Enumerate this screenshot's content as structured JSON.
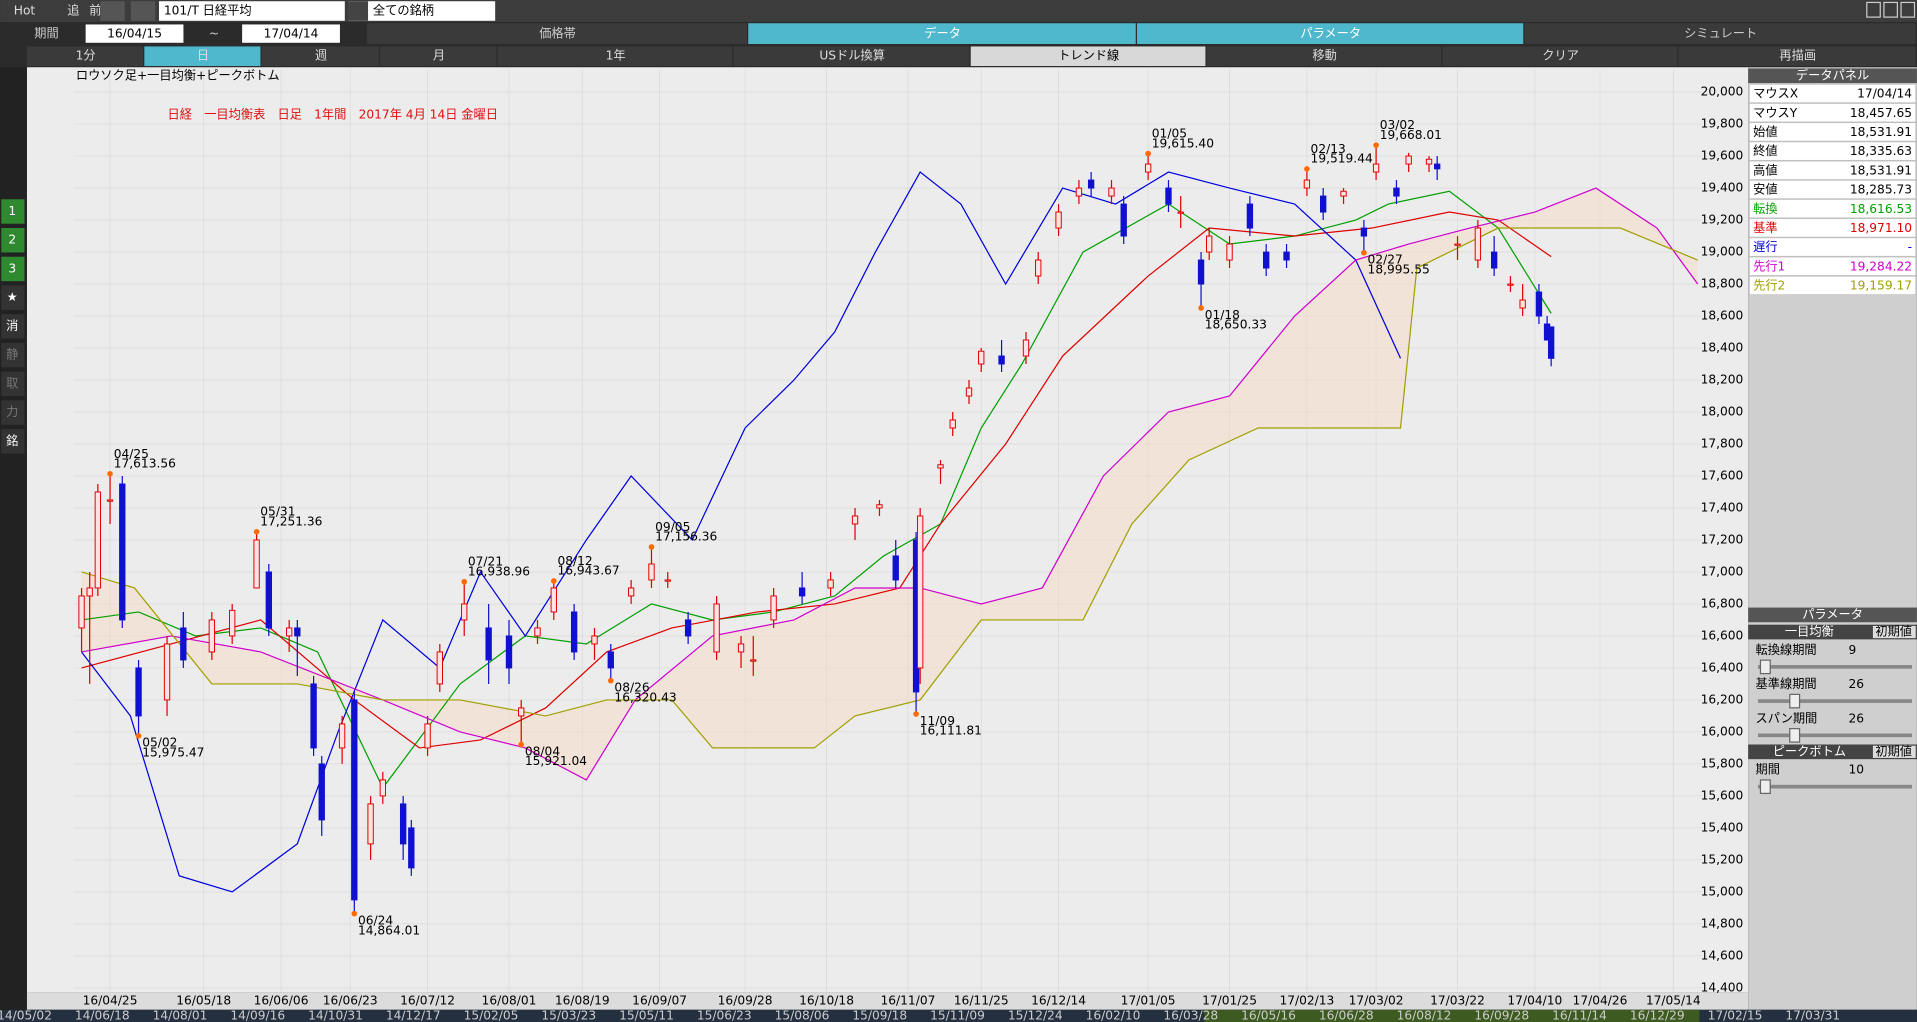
{
  "toolbar": {
    "items": [
      "Hot",
      "追",
      "前"
    ],
    "symbol": "101/T 日経平均",
    "filter": "全ての銘柄"
  },
  "period": {
    "label": "期間",
    "from": "16/04/15",
    "sep": "~",
    "to": "17/04/14"
  },
  "tabs": [
    "価格帯",
    "データ",
    "パラメータ",
    "シミュレート"
  ],
  "timeframes": [
    "1分",
    "日",
    "週",
    "月",
    "1年",
    "USドル換算",
    "トレンド線",
    "移動",
    "クリア",
    "再描画"
  ],
  "sidebar": [
    "1",
    "2",
    "3",
    "★",
    "消",
    "静",
    "取",
    "力",
    "銘"
  ],
  "chart_data": {
    "type": "candlestick",
    "title": "日経　一目均衡表　日足　1年間　2017年 4月 14日 金曜日",
    "subtitle": "ロウソク足+一目均衡+ピークボトム",
    "xlim": [
      "16/04/16",
      "17/05/21"
    ],
    "xticks": [
      "16/04/25",
      "16/05/18",
      "16/06/06",
      "16/06/23",
      "16/07/12",
      "16/08/01",
      "16/08/19",
      "16/09/07",
      "16/09/28",
      "16/10/18",
      "16/11/07",
      "16/11/25",
      "16/12/14",
      "17/01/05",
      "17/01/25",
      "17/02/13",
      "17/03/02",
      "17/03/22",
      "17/04/10",
      "17/04/26",
      "17/05/14"
    ],
    "ylim": [
      14370,
      20140
    ],
    "yticks": [
      {
        "value": 14400,
        "label": "14,400"
      },
      {
        "value": 14600,
        "label": "14,600"
      },
      {
        "value": 14800,
        "label": "14,800"
      },
      {
        "value": 15000,
        "label": "15,000"
      },
      {
        "value": 15200,
        "label": "15,200"
      },
      {
        "value": 15400,
        "label": "15,400"
      },
      {
        "value": 15600,
        "label": "15,600"
      },
      {
        "value": 15800,
        "label": "15,800"
      },
      {
        "value": 16000,
        "label": "16,000"
      },
      {
        "value": 16200,
        "label": "16,200"
      },
      {
        "value": 16400,
        "label": "16,400"
      },
      {
        "value": 16600,
        "label": "16,600"
      },
      {
        "value": 16800,
        "label": "16,800"
      },
      {
        "value": 17000,
        "label": "17,000"
      },
      {
        "value": 17200,
        "label": "17,200"
      },
      {
        "value": 17400,
        "label": "17,400"
      },
      {
        "value": 17600,
        "label": "17,600"
      },
      {
        "value": 17800,
        "label": "17,800"
      },
      {
        "value": 18000,
        "label": "18,000"
      },
      {
        "value": 18200,
        "label": "18,200"
      },
      {
        "value": 18400,
        "label": "18,400"
      },
      {
        "value": 18600,
        "label": "18,600"
      },
      {
        "value": 18800,
        "label": "18,800"
      },
      {
        "value": 19000,
        "label": "19,000"
      },
      {
        "value": 19200,
        "label": "19,200"
      },
      {
        "value": 19400,
        "label": "19,400"
      },
      {
        "value": 19600,
        "label": "19,600"
      },
      {
        "value": 19800,
        "label": "19,800"
      },
      {
        "value": 20000,
        "label": "20,000"
      }
    ],
    "grid": true,
    "up_color": "#e00000",
    "down_color": "#1010d0",
    "candles": {
      "x": [
        "16/04/18",
        "16/04/20",
        "16/04/22",
        "16/04/25",
        "16/04/28",
        "16/05/02",
        "16/05/09",
        "16/05/13",
        "16/05/20",
        "16/05/25",
        "16/05/31",
        "16/06/03",
        "16/06/08",
        "16/06/10",
        "16/06/14",
        "16/06/16",
        "16/06/21",
        "16/06/24",
        "16/06/28",
        "16/07/01",
        "16/07/06",
        "16/07/08",
        "16/07/12",
        "16/07/15",
        "16/07/21",
        "16/07/27",
        "16/08/01",
        "16/08/04",
        "16/08/08",
        "16/08/12",
        "16/08/17",
        "16/08/22",
        "16/08/26",
        "16/08/31",
        "16/09/05",
        "16/09/09",
        "16/09/14",
        "16/09/21",
        "16/09/27",
        "16/09/30",
        "16/10/05",
        "16/10/12",
        "16/10/19",
        "16/10/25",
        "16/10/31",
        "16/11/04",
        "16/11/09",
        "16/11/10",
        "16/11/15",
        "16/11/18",
        "16/11/22",
        "16/11/25",
        "16/11/30",
        "16/12/06",
        "16/12/09",
        "16/12/14",
        "16/12/19",
        "16/12/22",
        "16/12/27",
        "16/12/30",
        "17/01/05",
        "17/01/10",
        "17/01/13",
        "17/01/18",
        "17/01/20",
        "17/01/25",
        "17/01/30",
        "17/02/03",
        "17/02/08",
        "17/02/13",
        "17/02/17",
        "17/02/22",
        "17/02/27",
        "17/03/02",
        "17/03/07",
        "17/03/10",
        "17/03/15",
        "17/03/17",
        "17/03/22",
        "17/03/27",
        "17/03/31",
        "17/04/04",
        "17/04/07",
        "17/04/11",
        "17/04/13",
        "17/04/14"
      ],
      "open": [
        16650,
        16850,
        16900,
        17450,
        17550,
        16400,
        16200,
        16650,
        16500,
        16600,
        16900,
        17000,
        16600,
        16650,
        16300,
        15800,
        15900,
        16200,
        15300,
        15600,
        15550,
        15400,
        15900,
        16300,
        16700,
        16650,
        16600,
        16100,
        16600,
        16750,
        16750,
        16550,
        16500,
        16850,
        16950,
        16950,
        16700,
        16500,
        16500,
        16450,
        16700,
        16900,
        16900,
        17300,
        17400,
        17100,
        17200,
        16400,
        17650,
        17900,
        18100,
        18300,
        18350,
        18350,
        18850,
        19150,
        19350,
        19450,
        19350,
        19300,
        19500,
        19400,
        19250,
        18950,
        19000,
        18950,
        19300,
        19000,
        19000,
        19400,
        19350,
        19350,
        19150,
        19500,
        19400,
        19550,
        19550,
        19550,
        19050,
        18950,
        19000,
        18800,
        18650,
        18750,
        18550,
        18531.91
      ],
      "high": [
        16900,
        17000,
        17550,
        17613.56,
        17600,
        16450,
        16600,
        16750,
        16750,
        16800,
        17251.36,
        17050,
        16700,
        16700,
        16350,
        15850,
        16100,
        16250,
        15600,
        15750,
        15600,
        15450,
        16100,
        16550,
        16938.96,
        16800,
        16700,
        16200,
        16700,
        16943.67,
        16800,
        16650,
        16550,
        16950,
        17156.36,
        17000,
        16750,
        16850,
        16600,
        16600,
        16900,
        17000,
        17000,
        17400,
        17450,
        17200,
        17250,
        17400,
        17700,
        18000,
        18200,
        18400,
        18450,
        18500,
        19000,
        19300,
        19450,
        19500,
        19450,
        19350,
        19615.4,
        19450,
        19350,
        19000,
        19150,
        19100,
        19350,
        19050,
        19050,
        19519.44,
        19400,
        19400,
        19200,
        19668.01,
        19450,
        19620,
        19600,
        19600,
        19100,
        19200,
        19100,
        18850,
        18800,
        18800,
        18600,
        18531.91
      ],
      "low": [
        16500,
        16300,
        16850,
        17300,
        16650,
        15975.47,
        16100,
        16400,
        16450,
        16550,
        16900,
        16600,
        16500,
        16350,
        15850,
        15350,
        15800,
        14864.01,
        15200,
        15550,
        15200,
        15100,
        15850,
        16250,
        16600,
        16300,
        16300,
        15921.04,
        16550,
        16700,
        16450,
        16450,
        16320.43,
        16800,
        16900,
        16900,
        16550,
        16450,
        16400,
        16350,
        16650,
        16800,
        16850,
        17200,
        17350,
        16900,
        16111.81,
        16300,
        17550,
        17850,
        18050,
        18250,
        18250,
        18300,
        18800,
        19100,
        19300,
        19350,
        19300,
        19050,
        19450,
        19250,
        19150,
        18650.33,
        18950,
        18900,
        19100,
        18850,
        18900,
        19350,
        19200,
        19300,
        18995.55,
        19450,
        19300,
        19500,
        19500,
        19450,
        18950,
        18900,
        18850,
        18750,
        18600,
        18550,
        18450,
        18285.73
      ],
      "close": [
        16850,
        16900,
        17500,
        17450,
        16700,
        16100,
        16550,
        16450,
        16700,
        16760,
        17200,
        16650,
        16650,
        16600,
        15900,
        15450,
        16050,
        14950,
        15550,
        15700,
        15300,
        15150,
        16050,
        16500,
        16800,
        16450,
        16400,
        16150,
        16650,
        16900,
        16500,
        16600,
        16400,
        16900,
        17050,
        16950,
        16600,
        16800,
        16550,
        16450,
        16850,
        16850,
        16950,
        17350,
        17420,
        16950,
        16250,
        17350,
        17670,
        17950,
        18150,
        18380,
        18300,
        18450,
        18950,
        19250,
        19400,
        19400,
        19400,
        19100,
        19550,
        19300,
        19250,
        18800,
        19100,
        19050,
        19150,
        18900,
        18950,
        19450,
        19250,
        19380,
        19100,
        19550,
        19350,
        19600,
        19580,
        19520,
        19050,
        19150,
        18900,
        18800,
        18700,
        18600,
        18450,
        18335.63
      ]
    },
    "lines": [
      {
        "color": "#00a000",
        "x": [
          "16/04/18",
          "16/05/02",
          "16/05/16",
          "16/06/01",
          "16/06/15",
          "16/07/01",
          "16/07/20",
          "16/08/05",
          "16/08/20",
          "16/09/05",
          "16/09/20",
          "16/10/05",
          "16/10/20",
          "16/11/01",
          "16/11/15",
          "16/11/25",
          "16/12/05",
          "16/12/20",
          "17/01/10",
          "17/01/25",
          "17/02/10",
          "17/02/25",
          "17/03/05",
          "17/03/20",
          "17/04/01",
          "17/04/14"
        ],
        "values": [
          16700,
          16750,
          16600,
          16650,
          16500,
          15650,
          16300,
          16600,
          16550,
          16800,
          16700,
          16750,
          16850,
          17100,
          17300,
          17900,
          18300,
          19000,
          19300,
          19050,
          19100,
          19200,
          19300,
          19380,
          19150,
          18616.53
        ]
      },
      {
        "color": "#e00000",
        "x": [
          "16/04/18",
          "16/05/10",
          "16/06/01",
          "16/06/24",
          "16/07/10",
          "16/07/25",
          "16/08/10",
          "16/08/25",
          "16/09/10",
          "16/10/01",
          "16/10/20",
          "16/11/05",
          "16/11/15",
          "16/12/01",
          "16/12/15",
          "17/01/05",
          "17/01/20",
          "17/02/10",
          "17/03/01",
          "17/03/20",
          "17/04/01",
          "17/04/14"
        ],
        "values": [
          16400,
          16550,
          16700,
          16200,
          15900,
          15950,
          16150,
          16500,
          16650,
          16750,
          16800,
          16900,
          17300,
          17800,
          18350,
          18850,
          19150,
          19100,
          19150,
          19250,
          19200,
          18971.1
        ]
      },
      {
        "color": "#0000e0",
        "x": [
          "16/04/18",
          "16/04/30",
          "16/05/12",
          "16/05/25",
          "16/06/10",
          "16/06/20",
          "16/07/01",
          "16/07/15",
          "16/07/25",
          "16/08/05",
          "16/08/20",
          "16/08/31",
          "16/09/15",
          "16/09/28",
          "16/10/10",
          "16/10/20",
          "16/10/30",
          "16/11/10",
          "16/11/20",
          "16/12/01",
          "16/12/15",
          "16/12/28",
          "17/01/10",
          "17/01/25",
          "17/02/10",
          "17/02/25",
          "17/03/08"
        ],
        "values": [
          16500,
          16100,
          15100,
          15000,
          15300,
          16000,
          16700,
          16400,
          17000,
          16600,
          17200,
          17600,
          17200,
          17900,
          18200,
          18500,
          19000,
          19500,
          19300,
          18800,
          19400,
          19300,
          19500,
          19400,
          19300,
          18950,
          18335.63
        ]
      },
      {
        "color": "#d000d0",
        "x": [
          "16/04/18",
          "16/05/10",
          "16/06/01",
          "16/07/01",
          "16/07/20",
          "16/08/05",
          "16/08/20",
          "16/09/01",
          "16/09/20",
          "16/10/10",
          "16/10/25",
          "16/11/10",
          "16/11/25",
          "16/12/10",
          "16/12/25",
          "17/01/10",
          "17/01/25",
          "17/02/10",
          "17/02/25",
          "17/03/10",
          "17/03/25",
          "17/04/10",
          "17/04/25",
          "17/05/10",
          "17/05/20"
        ],
        "values": [
          16500,
          16600,
          16500,
          16200,
          16000,
          15900,
          15700,
          16200,
          16600,
          16700,
          16900,
          16900,
          16800,
          16900,
          17600,
          18000,
          18100,
          18600,
          18950,
          19050,
          19150,
          19250,
          19400,
          19150,
          18800
        ]
      },
      {
        "color": "#a0a000",
        "x": [
          "16/04/18",
          "16/05/01",
          "16/05/20",
          "16/06/10",
          "16/07/01",
          "16/07/20",
          "16/08/10",
          "16/08/25",
          "16/09/10",
          "16/09/20",
          "16/10/15",
          "16/10/25",
          "16/11/10",
          "16/11/25",
          "16/12/20",
          "17/01/01",
          "17/01/15",
          "17/02/01",
          "17/02/20",
          "17/03/08",
          "17/03/12",
          "17/04/01",
          "17/05/01",
          "17/05/20"
        ],
        "values": [
          17000,
          16900,
          16300,
          16300,
          16200,
          16200,
          16100,
          16200,
          16200,
          15900,
          15900,
          16100,
          16200,
          16700,
          16700,
          17300,
          17700,
          17900,
          17900,
          17900,
          18900,
          19150,
          19150,
          18950
        ]
      }
    ],
    "annotations": [
      {
        "x": "16/04/25",
        "date_label": "04/25",
        "value": 17613.56,
        "value_label": "17,613.56"
      },
      {
        "x": "16/05/02",
        "date_label": "05/02",
        "value": 15975.47,
        "value_label": "15,975.47"
      },
      {
        "x": "16/05/31",
        "date_label": "05/31",
        "value": 17251.36,
        "value_label": "17,251.36"
      },
      {
        "x": "16/06/24",
        "date_label": "06/24",
        "value": 14864.01,
        "value_label": "14,864.01"
      },
      {
        "x": "16/07/21",
        "date_label": "07/21",
        "value": 16938.96,
        "value_label": "16,938.96"
      },
      {
        "x": "16/08/04",
        "date_label": "08/04",
        "value": 15921.04,
        "value_label": "15,921.04"
      },
      {
        "x": "16/08/12",
        "date_label": "08/12",
        "value": 16943.67,
        "value_label": "16,943.67"
      },
      {
        "x": "16/08/26",
        "date_label": "08/26",
        "value": 16320.43,
        "value_label": "16,320.43"
      },
      {
        "x": "16/09/05",
        "date_label": "09/05",
        "value": 17156.36,
        "value_label": "17,156.36"
      },
      {
        "x": "16/11/09",
        "date_label": "11/09",
        "value": 16111.81,
        "value_label": "16,111.81"
      },
      {
        "x": "17/01/05",
        "date_label": "01/05",
        "value": 19615.4,
        "value_label": "19,615.40"
      },
      {
        "x": "17/01/18",
        "date_label": "01/18",
        "value": 18650.33,
        "value_label": "18,650.33"
      },
      {
        "x": "17/02/13",
        "date_label": "02/13",
        "value": 19519.44,
        "value_label": "19,519.44"
      },
      {
        "x": "17/02/27",
        "date_label": "02/27",
        "value": 18995.55,
        "value_label": "18,995.55"
      },
      {
        "x": "17/03/02",
        "date_label": "03/02",
        "value": 19668.01,
        "value_label": "19,668.01"
      }
    ]
  },
  "overview_dates": [
    "14/05/02",
    "14/06/18",
    "14/08/01",
    "14/09/16",
    "14/10/31",
    "14/12/17",
    "15/02/05",
    "15/03/23",
    "15/05/11",
    "15/06/23",
    "15/08/06",
    "15/09/18",
    "15/11/09",
    "15/12/24",
    "16/02/10",
    "16/03/28",
    "16/05/16",
    "16/06/28",
    "16/08/12",
    "16/09/28",
    "16/11/14",
    "16/12/29",
    "17/02/15",
    "17/03/31"
  ],
  "data_panel": {
    "title": "データパネル",
    "rows": [
      {
        "label": "マウスX",
        "value": "17/04/14"
      },
      {
        "label": "マウスY",
        "value": "18,457.65"
      },
      {
        "label": "始値",
        "value": "18,531.91"
      },
      {
        "label": "終値",
        "value": "18,335.63"
      },
      {
        "label": "高値",
        "value": "18,531.91"
      },
      {
        "label": "安値",
        "value": "18,285.73"
      },
      {
        "label": "転換",
        "value": "18,616.53",
        "color": "#00a000"
      },
      {
        "label": "基準",
        "value": "18,971.10",
        "color": "#e00000"
      },
      {
        "label": "遅行",
        "value": "-",
        "color": "#0000e0"
      },
      {
        "label": "先行1",
        "value": "19,284.22",
        "color": "#d000d0"
      },
      {
        "label": "先行2",
        "value": "19,159.17",
        "color": "#a0a000"
      }
    ]
  },
  "parameters": {
    "title": "パラメータ",
    "ichimoku": {
      "title": "一目均衡",
      "reset": "初期値",
      "rows": [
        {
          "label": "転換線期間",
          "value": 9
        },
        {
          "label": "基準線期間",
          "value": 26
        },
        {
          "label": "スパン期間",
          "value": 26
        }
      ]
    },
    "peak_bottom": {
      "title": "ピークボトム",
      "reset": "初期値",
      "rows": [
        {
          "label": "期間",
          "value": 10
        }
      ]
    }
  }
}
